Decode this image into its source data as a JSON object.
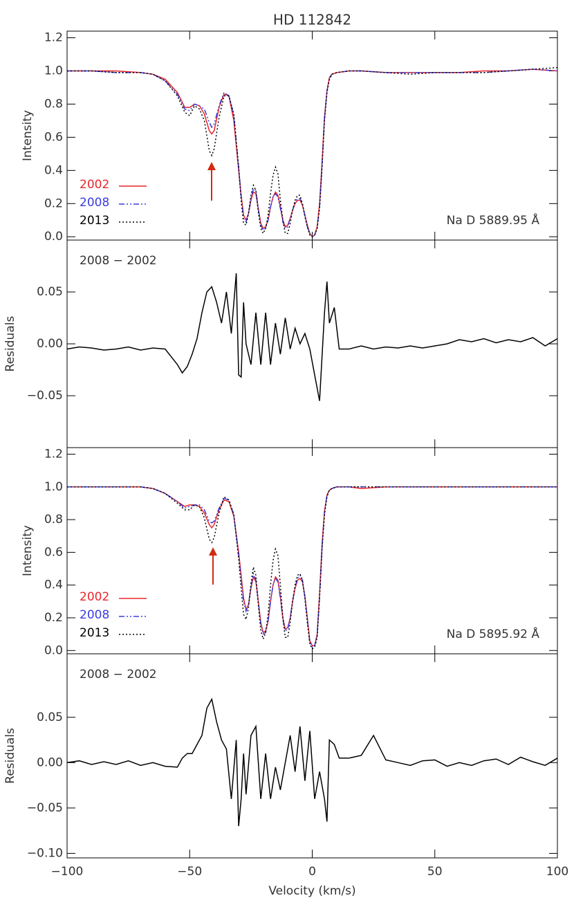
{
  "chart_data": [
    {
      "type": "line",
      "title": "HD 112842",
      "ylabel": "Intensity",
      "annotation": "Na D 5889.95 Å",
      "xlim": [
        -100,
        100
      ],
      "ylim": [
        -0.02,
        1.24
      ],
      "yticks": [
        {
          "value": 0,
          "label": "0.0"
        },
        0.2,
        0.4,
        0.6,
        0.8,
        {
          "value": 1,
          "label": "1.0"
        },
        1.2
      ],
      "x": [
        -100,
        -90,
        -80,
        -70,
        -65,
        -60,
        -55,
        -52,
        -50,
        -48,
        -46,
        -44,
        -42,
        -41,
        -40,
        -38,
        -36,
        -34,
        -32,
        -30,
        -29,
        -28,
        -27,
        -26,
        -25,
        -24,
        -23,
        -22,
        -21,
        -20,
        -19,
        -18,
        -17,
        -16,
        -15,
        -14,
        -13,
        -12,
        -11,
        -10,
        -9,
        -8,
        -7,
        -6,
        -5,
        -4,
        -3,
        -2,
        -1,
        0,
        1,
        2,
        3,
        4,
        5,
        6,
        7,
        8,
        10,
        15,
        20,
        30,
        40,
        50,
        60,
        70,
        80,
        90,
        100
      ],
      "series": [
        {
          "name": "2002",
          "color": "#e8262a",
          "linestyle": "solid",
          "values": [
            1.0,
            1.0,
            1.0,
            0.99,
            0.98,
            0.95,
            0.87,
            0.78,
            0.78,
            0.8,
            0.79,
            0.74,
            0.64,
            0.62,
            0.64,
            0.78,
            0.86,
            0.85,
            0.7,
            0.4,
            0.25,
            0.13,
            0.1,
            0.14,
            0.22,
            0.27,
            0.26,
            0.17,
            0.08,
            0.05,
            0.06,
            0.1,
            0.18,
            0.24,
            0.27,
            0.25,
            0.18,
            0.1,
            0.06,
            0.07,
            0.11,
            0.16,
            0.2,
            0.22,
            0.22,
            0.19,
            0.13,
            0.07,
            0.02,
            0.0,
            0.01,
            0.06,
            0.2,
            0.45,
            0.72,
            0.88,
            0.96,
            0.98,
            0.99,
            1.0,
            1.0,
            0.99,
            0.99,
            0.99,
            0.99,
            1.0,
            1.0,
            1.01,
            1.0
          ]
        },
        {
          "name": "2008",
          "color": "#3b3be0",
          "linestyle": "dashdotdot",
          "values": [
            1.0,
            1.0,
            0.99,
            0.99,
            0.98,
            0.94,
            0.86,
            0.77,
            0.76,
            0.8,
            0.79,
            0.77,
            0.69,
            0.66,
            0.68,
            0.79,
            0.87,
            0.85,
            0.73,
            0.42,
            0.24,
            0.11,
            0.09,
            0.14,
            0.23,
            0.29,
            0.28,
            0.17,
            0.07,
            0.04,
            0.05,
            0.1,
            0.18,
            0.24,
            0.26,
            0.24,
            0.17,
            0.09,
            0.05,
            0.06,
            0.11,
            0.16,
            0.21,
            0.23,
            0.23,
            0.2,
            0.13,
            0.06,
            0.02,
            0.0,
            0.01,
            0.05,
            0.18,
            0.43,
            0.71,
            0.88,
            0.95,
            0.98,
            0.99,
            1.0,
            1.0,
            0.99,
            0.99,
            0.99,
            0.99,
            0.99,
            1.0,
            1.01,
            1.0
          ]
        },
        {
          "name": "2013",
          "color": "#000000",
          "linestyle": "dotted",
          "values": [
            1.0,
            1.0,
            0.99,
            0.99,
            0.98,
            0.94,
            0.85,
            0.75,
            0.73,
            0.79,
            0.77,
            0.7,
            0.52,
            0.49,
            0.53,
            0.72,
            0.85,
            0.85,
            0.74,
            0.42,
            0.22,
            0.08,
            0.07,
            0.14,
            0.25,
            0.31,
            0.28,
            0.15,
            0.05,
            0.02,
            0.05,
            0.13,
            0.26,
            0.37,
            0.42,
            0.38,
            0.22,
            0.1,
            0.02,
            0.02,
            0.08,
            0.16,
            0.22,
            0.25,
            0.25,
            0.2,
            0.12,
            0.06,
            0.01,
            0.0,
            0.01,
            0.05,
            0.17,
            0.42,
            0.7,
            0.87,
            0.95,
            0.98,
            0.99,
            1.0,
            1.0,
            0.99,
            0.98,
            0.99,
            0.99,
            0.99,
            1.0,
            1.01,
            1.02
          ]
        }
      ]
    },
    {
      "type": "line",
      "ylabel": "Residuals",
      "annotation": "2008 − 2002",
      "color": "#000000",
      "xlim": [
        -100,
        100
      ],
      "ylim": [
        -0.1,
        0.1
      ],
      "yticks": [
        {
          "value": -0.05,
          "label": "−0.05"
        },
        {
          "value": 0,
          "label": "0.00"
        },
        0.05
      ],
      "x": [
        -100,
        -95,
        -90,
        -85,
        -80,
        -75,
        -70,
        -65,
        -60,
        -55,
        -53,
        -51,
        -49,
        -47,
        -45,
        -43,
        -41,
        -39,
        -37,
        -35,
        -33,
        -31,
        -30,
        -29,
        -28,
        -27,
        -25,
        -23,
        -21,
        -19,
        -17,
        -15,
        -13,
        -11,
        -9,
        -7,
        -5,
        -3,
        -1,
        1,
        3,
        5,
        6,
        7,
        9,
        11,
        15,
        20,
        25,
        30,
        35,
        40,
        45,
        50,
        55,
        60,
        65,
        70,
        75,
        80,
        85,
        90,
        95,
        100
      ],
      "values": [
        -0.005,
        -0.003,
        -0.004,
        -0.006,
        -0.005,
        -0.003,
        -0.006,
        -0.004,
        -0.005,
        -0.02,
        -0.028,
        -0.022,
        -0.01,
        0.005,
        0.03,
        0.05,
        0.055,
        0.04,
        0.02,
        0.05,
        0.01,
        0.068,
        -0.03,
        -0.032,
        0.04,
        0.0,
        -0.02,
        0.03,
        -0.02,
        0.03,
        -0.02,
        0.02,
        -0.01,
        0.025,
        -0.005,
        0.015,
        0.0,
        0.01,
        -0.005,
        -0.03,
        -0.055,
        0.03,
        0.06,
        0.02,
        0.035,
        -0.005,
        -0.005,
        -0.002,
        -0.005,
        -0.003,
        -0.004,
        -0.002,
        -0.004,
        -0.002,
        0.0,
        0.004,
        0.002,
        0.005,
        0.001,
        0.004,
        0.002,
        0.006,
        -0.002,
        0.005
      ]
    },
    {
      "type": "line",
      "ylabel": "Intensity",
      "annotation": "Na D 5895.92 Å",
      "xlim": [
        -100,
        100
      ],
      "ylim": [
        -0.02,
        1.24
      ],
      "yticks": [
        {
          "value": 0,
          "label": "0.0"
        },
        0.2,
        0.4,
        0.6,
        0.8,
        {
          "value": 1,
          "label": "1.0"
        },
        1.2
      ],
      "x": [
        -100,
        -90,
        -80,
        -70,
        -65,
        -60,
        -55,
        -52,
        -50,
        -48,
        -46,
        -44,
        -42,
        -41,
        -40,
        -38,
        -36,
        -34,
        -32,
        -30,
        -29,
        -28,
        -27,
        -26,
        -25,
        -24,
        -23,
        -22,
        -21,
        -20,
        -19,
        -18,
        -17,
        -16,
        -15,
        -14,
        -13,
        -12,
        -11,
        -10,
        -9,
        -8,
        -7,
        -6,
        -5,
        -4,
        -3,
        -2,
        -1,
        0,
        1,
        2,
        3,
        4,
        5,
        6,
        7,
        8,
        10,
        15,
        20,
        30,
        40,
        50,
        60,
        70,
        80,
        90,
        100
      ],
      "series": [
        {
          "name": "2002",
          "color": "#e8262a",
          "linestyle": "solid",
          "values": [
            1.0,
            1.0,
            1.0,
            1.0,
            0.99,
            0.96,
            0.91,
            0.88,
            0.89,
            0.89,
            0.88,
            0.84,
            0.77,
            0.75,
            0.77,
            0.86,
            0.92,
            0.91,
            0.82,
            0.6,
            0.46,
            0.32,
            0.25,
            0.28,
            0.38,
            0.45,
            0.42,
            0.3,
            0.17,
            0.11,
            0.12,
            0.18,
            0.3,
            0.4,
            0.45,
            0.43,
            0.33,
            0.2,
            0.13,
            0.14,
            0.2,
            0.3,
            0.38,
            0.43,
            0.44,
            0.42,
            0.33,
            0.2,
            0.06,
            0.03,
            0.03,
            0.1,
            0.35,
            0.65,
            0.85,
            0.95,
            0.98,
            0.99,
            1.0,
            1.0,
            0.99,
            1.0,
            1.0,
            1.0,
            1.0,
            1.0,
            1.0,
            1.0,
            1.0
          ]
        },
        {
          "name": "2008",
          "color": "#3b3be0",
          "linestyle": "dashdotdot",
          "values": [
            1.0,
            1.0,
            1.0,
            1.0,
            0.99,
            0.96,
            0.91,
            0.87,
            0.88,
            0.89,
            0.89,
            0.86,
            0.79,
            0.78,
            0.79,
            0.87,
            0.93,
            0.92,
            0.83,
            0.58,
            0.44,
            0.3,
            0.24,
            0.28,
            0.39,
            0.47,
            0.43,
            0.3,
            0.16,
            0.1,
            0.11,
            0.18,
            0.3,
            0.4,
            0.44,
            0.42,
            0.32,
            0.19,
            0.12,
            0.13,
            0.2,
            0.3,
            0.39,
            0.44,
            0.46,
            0.43,
            0.33,
            0.19,
            0.05,
            0.02,
            0.03,
            0.09,
            0.33,
            0.63,
            0.84,
            0.95,
            0.98,
            0.99,
            1.0,
            1.0,
            1.0,
            1.0,
            1.0,
            1.0,
            1.0,
            1.0,
            1.0,
            1.0,
            1.0
          ]
        },
        {
          "name": "2013",
          "color": "#000000",
          "linestyle": "dotted",
          "values": [
            1.0,
            1.0,
            1.0,
            1.0,
            0.99,
            0.96,
            0.9,
            0.86,
            0.86,
            0.89,
            0.88,
            0.81,
            0.68,
            0.66,
            0.69,
            0.84,
            0.94,
            0.92,
            0.83,
            0.56,
            0.38,
            0.22,
            0.19,
            0.26,
            0.41,
            0.51,
            0.46,
            0.28,
            0.12,
            0.07,
            0.11,
            0.22,
            0.4,
            0.55,
            0.62,
            0.58,
            0.4,
            0.2,
            0.08,
            0.08,
            0.17,
            0.3,
            0.4,
            0.46,
            0.47,
            0.43,
            0.32,
            0.17,
            0.04,
            0.01,
            0.02,
            0.08,
            0.32,
            0.62,
            0.83,
            0.94,
            0.98,
            0.99,
            1.0,
            1.0,
            1.0,
            1.0,
            1.0,
            1.0,
            1.0,
            1.0,
            1.0,
            1.0,
            1.0
          ]
        }
      ]
    },
    {
      "type": "line",
      "ylabel": "Residuals",
      "annotation": "2008 − 2002",
      "color": "#000000",
      "xlabel": "Velocity (km/s)",
      "xlim": [
        -100,
        100
      ],
      "ylim": [
        -0.105,
        0.12
      ],
      "xticks": [
        {
          "value": -100,
          "label": "−100"
        },
        {
          "value": -50,
          "label": "−50"
        },
        0,
        50,
        100
      ],
      "yticks": [
        {
          "value": -0.1,
          "label": "−0.10"
        },
        {
          "value": -0.05,
          "label": "−0.05"
        },
        {
          "value": 0,
          "label": "0.00"
        },
        0.05
      ],
      "x": [
        -100,
        -95,
        -90,
        -85,
        -80,
        -75,
        -70,
        -65,
        -60,
        -55,
        -53,
        -51,
        -49,
        -47,
        -45,
        -43,
        -41,
        -39,
        -37,
        -35,
        -33,
        -31,
        -30,
        -29,
        -28,
        -27,
        -25,
        -23,
        -21,
        -19,
        -17,
        -15,
        -13,
        -11,
        -9,
        -7,
        -5,
        -3,
        -1,
        1,
        3,
        5,
        6,
        7,
        9,
        11,
        15,
        20,
        25,
        30,
        35,
        40,
        45,
        50,
        55,
        60,
        65,
        70,
        75,
        80,
        85,
        90,
        95,
        100
      ],
      "values": [
        0.0,
        0.002,
        -0.002,
        0.001,
        -0.002,
        0.002,
        -0.003,
        0.0,
        -0.004,
        -0.005,
        0.005,
        0.01,
        0.01,
        0.02,
        0.03,
        0.06,
        0.07,
        0.045,
        0.025,
        0.015,
        -0.04,
        0.025,
        -0.07,
        -0.04,
        0.01,
        -0.035,
        0.03,
        0.04,
        -0.04,
        0.01,
        -0.04,
        -0.005,
        -0.03,
        0.0,
        0.03,
        -0.01,
        0.04,
        -0.02,
        0.035,
        -0.04,
        -0.01,
        -0.04,
        -0.065,
        0.025,
        0.02,
        0.005,
        0.005,
        0.008,
        0.03,
        0.003,
        0.0,
        -0.003,
        0.002,
        0.003,
        -0.004,
        0.0,
        -0.003,
        0.002,
        0.004,
        -0.002,
        0.006,
        0.001,
        -0.003,
        0.005
      ]
    }
  ]
}
